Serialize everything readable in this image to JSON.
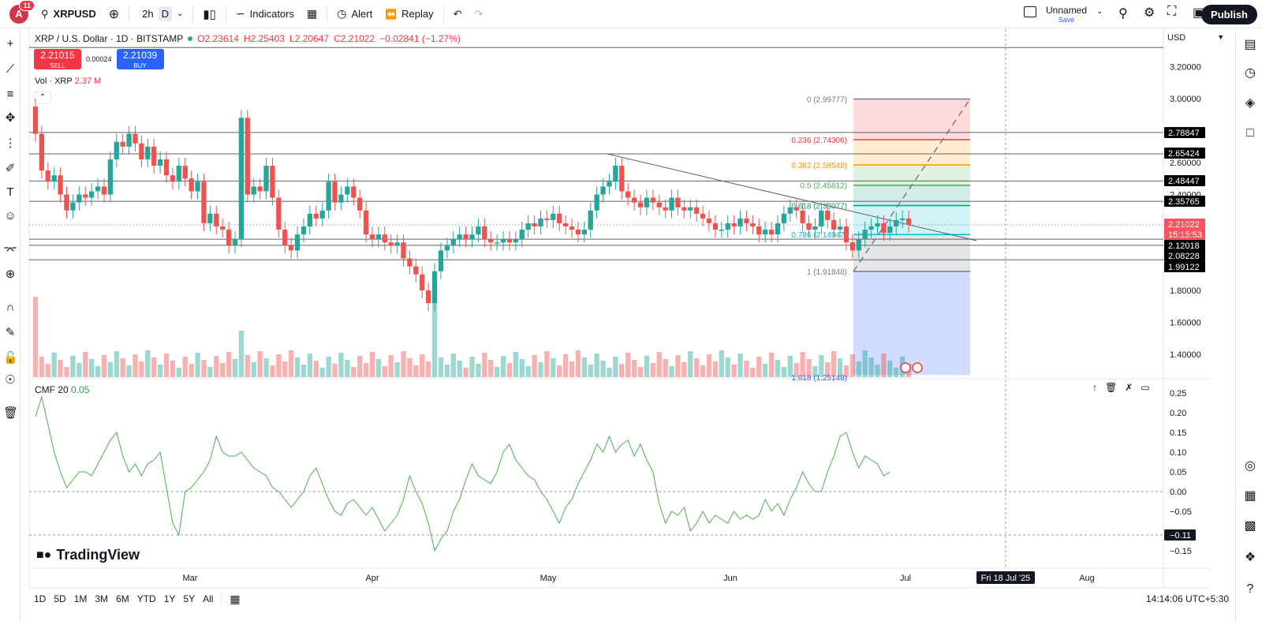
{
  "topbar": {
    "avatar_letter": "A",
    "notif_count": "11",
    "symbol": "XRPUSD",
    "interval": "2h",
    "interval_d": "D",
    "indicators": "Indicators",
    "alert": "Alert",
    "replay": "Replay",
    "layout_name": "Unnamed",
    "save": "Save",
    "publish": "Publish"
  },
  "legend": {
    "title": "XRP / U.S. Dollar · 1D · BITSTAMP",
    "o": "O2.23614",
    "h": "H2.25403",
    "l": "L2.20647",
    "c": "C2.21022",
    "chg": "−0.02841 (−1.27%)"
  },
  "trade": {
    "sell_price": "2.21015",
    "sell_label": "SELL",
    "spread": "0.00024",
    "buy_price": "2.21039",
    "buy_label": "BUY"
  },
  "volume": {
    "label": "Vol · XRP",
    "value": "2.37 M"
  },
  "cmf": {
    "label": "CMF 20",
    "value": "0.05"
  },
  "currency": "USD",
  "brand": "TradingView",
  "price_axis": [
    "3.20000",
    "3.00000",
    "2.60000",
    "2.40000",
    "1.80000",
    "1.60000",
    "1.40000"
  ],
  "price_tags": [
    {
      "label": "2.78847",
      "color": "#000000"
    },
    {
      "label": "2.65424",
      "color": "#000000"
    },
    {
      "label": "2.48447",
      "color": "#000000"
    },
    {
      "label": "2.35765",
      "color": "#000000"
    },
    {
      "label": "2.21022",
      "color": "#f7525f"
    },
    {
      "label": "15:15:53",
      "color": "#f7525f"
    },
    {
      "label": "2.12018",
      "color": "#000000"
    },
    {
      "label": "2.08228",
      "color": "#000000"
    },
    {
      "label": "1.99122",
      "color": "#000000"
    }
  ],
  "cmf_axis": [
    "0.25",
    "0.20",
    "0.15",
    "0.10",
    "0.05",
    "0.00",
    "−0.05",
    "−0.11",
    "−0.15"
  ],
  "time_axis": [
    "Mar",
    "Apr",
    "May",
    "Jun",
    "Jul",
    "Aug"
  ],
  "crosshair_date": "Fri 18 Jul '25",
  "fib_levels": [
    {
      "label": "0 (2.99777)",
      "color": "#787b86"
    },
    {
      "label": "0.236 (2.74306)",
      "color": "#f23645"
    },
    {
      "label": "0.382 (2.58548)",
      "color": "#ff9800"
    },
    {
      "label": "0.5 (2.45812)",
      "color": "#4caf50"
    },
    {
      "label": "0.618 (2.33077)",
      "color": "#089981"
    },
    {
      "label": "0.786 (2.14947)",
      "color": "#00bcd4"
    },
    {
      "label": "1 (1.91848)",
      "color": "#787b86"
    },
    {
      "label": "1.618 (1.25148)",
      "color": "#2962ff"
    }
  ],
  "ranges": [
    "1D",
    "5D",
    "1M",
    "3M",
    "6M",
    "YTD",
    "1Y",
    "5Y",
    "All"
  ],
  "clock": "14:14:06 UTC+5:30",
  "colors": {
    "up": "#26a69a",
    "down": "#ef5350",
    "cmf": "#4caf50"
  }
}
